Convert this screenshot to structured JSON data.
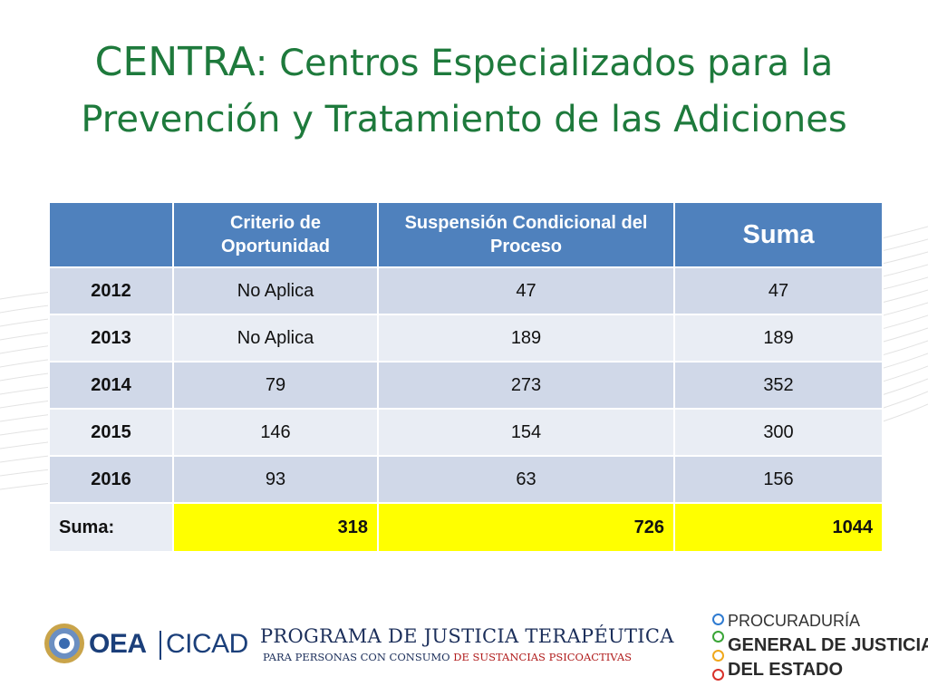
{
  "title": {
    "lead": "CENTRA",
    "rest": ": Centros Especializados para la Prevención y Tratamiento de las Adiciones"
  },
  "colors": {
    "title": "#1e7a3c",
    "header_bg": "#4f81bd",
    "row_odd": "#d0d8e8",
    "row_even": "#e9edf4",
    "highlight": "#ffff00"
  },
  "table": {
    "headers": [
      "",
      "Criterio de Oportunidad",
      "Suspensión Condicional del Proceso",
      "Suma"
    ],
    "rows": [
      {
        "year": "2012",
        "criterio": "No Aplica",
        "suspension": "47",
        "suma": "47"
      },
      {
        "year": "2013",
        "criterio": "No Aplica",
        "suspension": "189",
        "suma": "189"
      },
      {
        "year": "2014",
        "criterio": "79",
        "suspension": "273",
        "suma": "352"
      },
      {
        "year": "2015",
        "criterio": "146",
        "suspension": "154",
        "suma": "300"
      },
      {
        "year": "2016",
        "criterio": "93",
        "suspension": "63",
        "suma": "156"
      }
    ],
    "total": {
      "label": "Suma:",
      "criterio": "318",
      "suspension": "726",
      "suma": "1044"
    }
  },
  "footer": {
    "oea": "OEA",
    "cicad": "CICAD",
    "program_title": "PROGRAMA DE JUSTICIA TERAPÉUTICA",
    "program_sub_part1": "PARA PERSONAS CON CONSUMO ",
    "program_sub_part2": "DE SUSTANCIAS PSICOACTIVAS",
    "procuraduria_line1": "PROCURADURÍA",
    "procuraduria_line2": "GENERAL DE JUSTICIA",
    "procuraduria_line3": "DEL ESTADO",
    "dot_colors": [
      "#2f7bd1",
      "#3aa537",
      "#f0a81c",
      "#d8312a"
    ]
  }
}
